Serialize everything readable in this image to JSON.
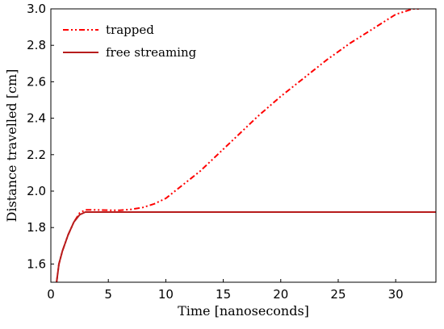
{
  "chart_data": {
    "type": "line",
    "title": "",
    "xlabel": "Time [nanoseconds]",
    "ylabel": "Distance travelled [cm]",
    "xlim": [
      0,
      33.5
    ],
    "ylim": [
      1.5,
      3.0
    ],
    "xticks": [
      0,
      5,
      10,
      15,
      20,
      25,
      30
    ],
    "yticks": [
      1.6,
      1.8,
      2.0,
      2.2,
      2.4,
      2.6,
      2.8,
      3.0
    ],
    "xtick_labels": [
      "0",
      "5",
      "10",
      "15",
      "20",
      "25",
      "30"
    ],
    "ytick_labels": [
      "1.6",
      "1.8",
      "2.0",
      "2.2",
      "2.4",
      "2.6",
      "2.8",
      "3.0"
    ],
    "grid": false,
    "legend_position": "top-left",
    "series": [
      {
        "name": "trapped",
        "color": "#ff0000",
        "style": "dash-dot-dot",
        "x": [
          0.5,
          0.7,
          1.0,
          1.5,
          2.0,
          2.5,
          3.0,
          4.0,
          5.0,
          6.0,
          7.0,
          8.0,
          9.0,
          10.0,
          11.0,
          12.0,
          13.0,
          14.0,
          15.0,
          16.0,
          18.0,
          20.0,
          22.0,
          24.0,
          26.0,
          28.0,
          30.0,
          31.5,
          32.2
        ],
        "y": [
          1.5,
          1.6,
          1.67,
          1.76,
          1.83,
          1.88,
          1.897,
          1.897,
          1.895,
          1.895,
          1.9,
          1.91,
          1.93,
          1.96,
          2.01,
          2.06,
          2.11,
          2.17,
          2.23,
          2.29,
          2.41,
          2.52,
          2.62,
          2.72,
          2.81,
          2.89,
          2.97,
          3.0,
          3.0
        ]
      },
      {
        "name": "free streaming",
        "color": "#b71c1c",
        "style": "solid",
        "x": [
          0.5,
          0.7,
          1.0,
          1.5,
          2.0,
          2.5,
          3.0,
          5.0,
          10.0,
          20.0,
          33.5
        ],
        "y": [
          1.5,
          1.6,
          1.67,
          1.76,
          1.83,
          1.87,
          1.885,
          1.885,
          1.885,
          1.885,
          1.885
        ]
      }
    ]
  }
}
